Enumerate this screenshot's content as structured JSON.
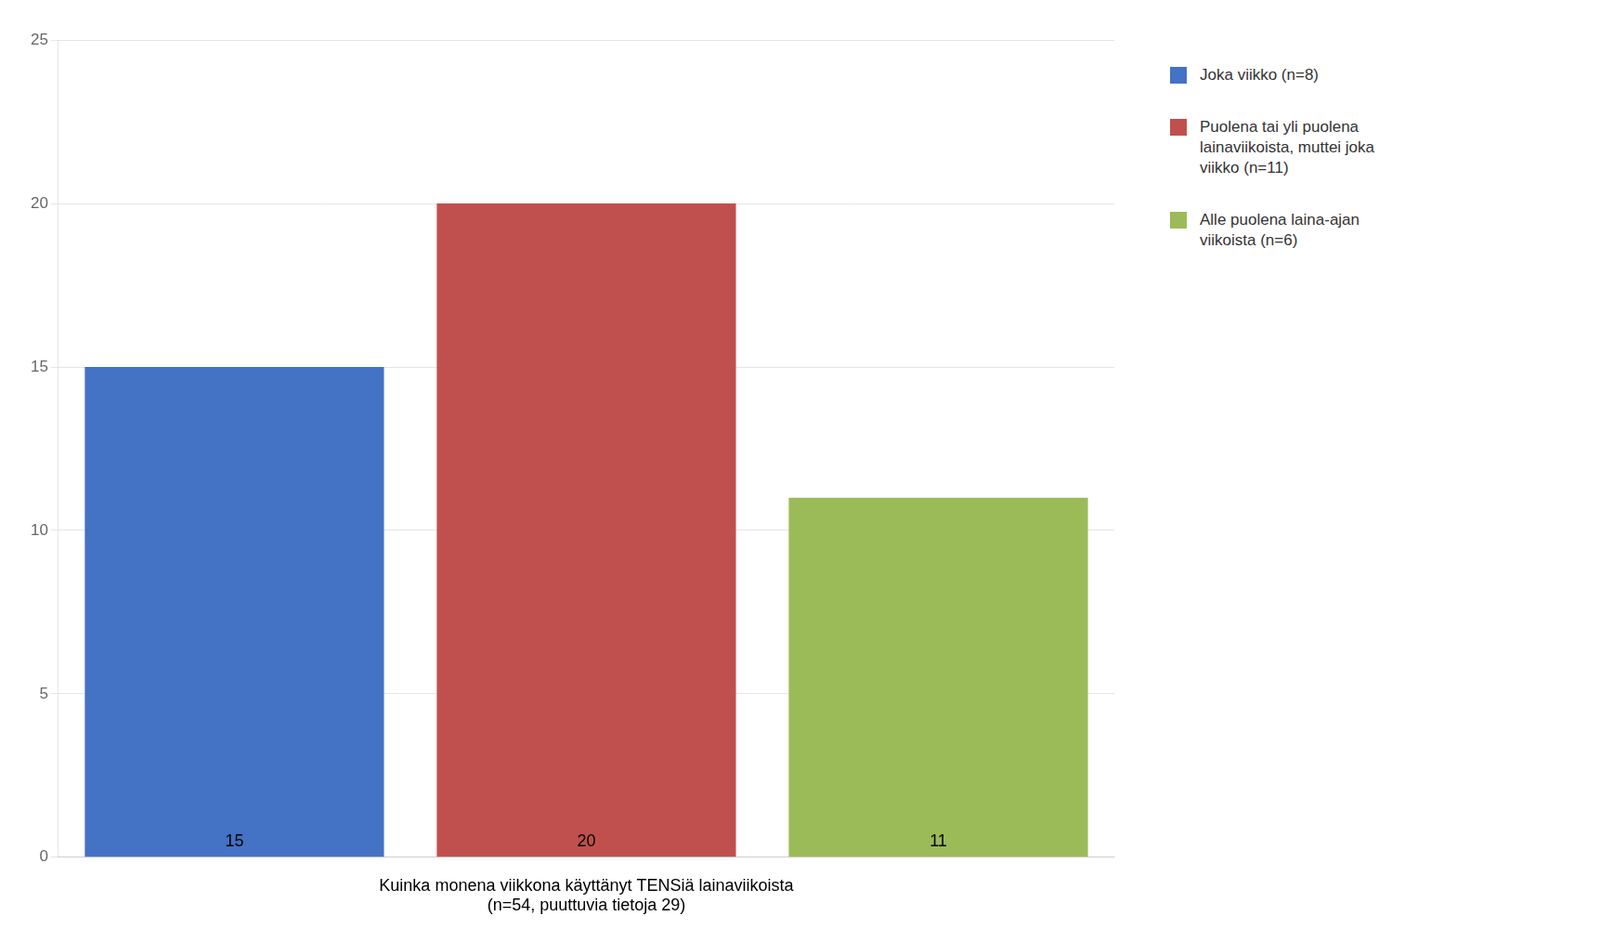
{
  "chart_data": {
    "type": "bar",
    "categories": [
      null,
      null,
      null
    ],
    "series": [
      {
        "name": "Joka viikko (n=8)",
        "color": "#4472C4",
        "values": [
          15,
          null,
          null
        ]
      },
      {
        "name": "Puolena tai yli puolena\nlainaviikoista, muttei joka\nviikko (n=11)",
        "color": "#C0504D",
        "values": [
          null,
          20,
          null
        ]
      },
      {
        "name": "Alle puolena laina-ajan\nviikoista (n=6)",
        "color": "#9BBB59",
        "values": [
          null,
          null,
          11
        ]
      }
    ],
    "x_label": "Kuinka monena viikkona käyttänyt TENSiä lainaviikoista\n(n=54, puuttuvia tietoja 29)",
    "ylim": [
      0,
      25
    ],
    "yticks": [
      0,
      5,
      10,
      15,
      20,
      25
    ],
    "grid": true,
    "legend": "right",
    "data_labels": true,
    "tick_labels": "y"
  }
}
